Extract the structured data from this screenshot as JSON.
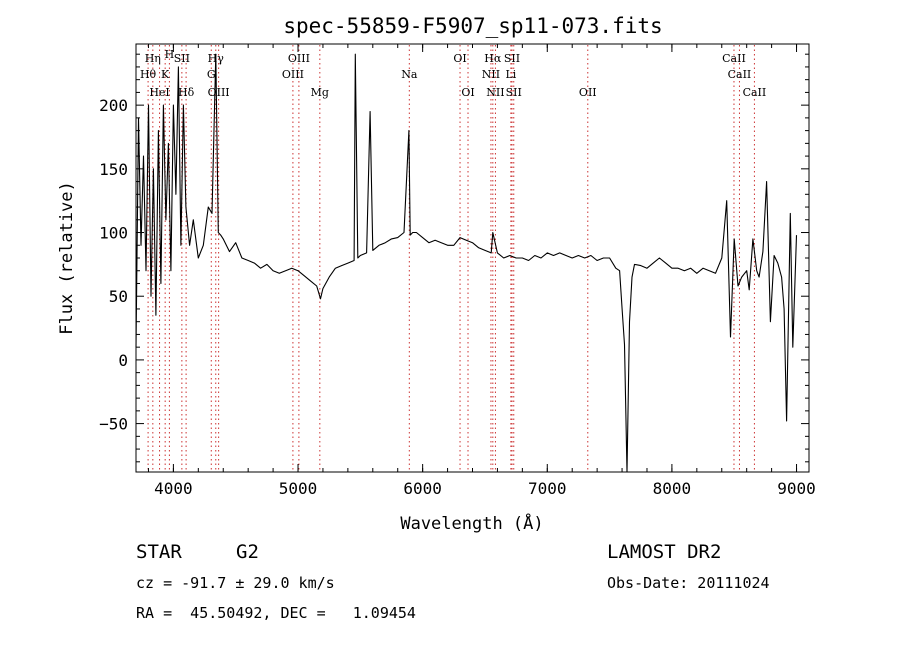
{
  "chart_data": {
    "type": "line",
    "title": "spec-55859-F5907_sp11-073.fits",
    "xlabel": "Wavelength (Å)",
    "ylabel": "Flux (relative)",
    "xlim": [
      3700,
      9100
    ],
    "ylim": [
      -88,
      248
    ],
    "xticks": [
      4000,
      5000,
      6000,
      7000,
      8000,
      9000
    ],
    "yticks": [
      -50,
      0,
      50,
      100,
      150,
      200
    ],
    "grid": false,
    "series": [
      {
        "x": [
          3700,
          3720,
          3740,
          3760,
          3780,
          3800,
          3820,
          3840,
          3860,
          3880,
          3900,
          3920,
          3940,
          3960,
          3980,
          4000,
          4020,
          4040,
          4060,
          4080,
          4100,
          4130,
          4160,
          4200,
          4240,
          4280,
          4310,
          4340,
          4360,
          4380,
          4400,
          4450,
          4500,
          4550,
          4600,
          4650,
          4700,
          4750,
          4800,
          4850,
          4900,
          4950,
          5000,
          5050,
          5100,
          5150,
          5180,
          5200,
          5250,
          5300,
          5350,
          5400,
          5450,
          5460,
          5480,
          5500,
          5550,
          5578,
          5600,
          5650,
          5700,
          5750,
          5800,
          5850,
          5890,
          5900,
          5920,
          5950,
          6000,
          6050,
          6100,
          6150,
          6200,
          6250,
          6300,
          6350,
          6400,
          6450,
          6500,
          6550,
          6563,
          6600,
          6650,
          6700,
          6750,
          6800,
          6850,
          6900,
          6950,
          7000,
          7050,
          7100,
          7150,
          7200,
          7250,
          7300,
          7350,
          7400,
          7450,
          7500,
          7550,
          7580,
          7600,
          7620,
          7640,
          7660,
          7680,
          7700,
          7750,
          7800,
          7850,
          7900,
          7950,
          8000,
          8050,
          8100,
          8150,
          8200,
          8250,
          8300,
          8350,
          8400,
          8440,
          8470,
          8500,
          8530,
          8560,
          8600,
          8620,
          8650,
          8680,
          8700,
          8730,
          8760,
          8790,
          8820,
          8850,
          8880,
          8900,
          8920,
          8950,
          8970,
          9000
        ],
        "values": [
          10,
          190,
          90,
          160,
          70,
          200,
          50,
          150,
          35,
          180,
          60,
          200,
          110,
          170,
          70,
          200,
          130,
          230,
          90,
          200,
          120,
          90,
          110,
          80,
          90,
          120,
          115,
          240,
          100,
          98,
          95,
          85,
          92,
          80,
          78,
          76,
          72,
          75,
          70,
          68,
          70,
          72,
          70,
          66,
          62,
          58,
          48,
          56,
          65,
          72,
          74,
          76,
          78,
          240,
          80,
          82,
          84,
          195,
          86,
          90,
          92,
          95,
          96,
          100,
          180,
          98,
          100,
          100,
          96,
          92,
          94,
          92,
          90,
          90,
          96,
          94,
          92,
          88,
          86,
          84,
          100,
          84,
          80,
          82,
          80,
          80,
          78,
          82,
          80,
          84,
          82,
          84,
          82,
          80,
          82,
          80,
          82,
          78,
          80,
          80,
          72,
          70,
          40,
          12,
          -88,
          30,
          65,
          75,
          74,
          72,
          76,
          80,
          76,
          72,
          72,
          70,
          72,
          68,
          72,
          70,
          68,
          80,
          125,
          18,
          95,
          58,
          65,
          70,
          55,
          95,
          70,
          65,
          85,
          140,
          30,
          82,
          76,
          65,
          40,
          -48,
          115,
          10,
          98
        ]
      }
    ],
    "lines": [
      {
        "name": "Hη",
        "x": 3835,
        "row": 1
      },
      {
        "name": "Hθ",
        "x": 3797,
        "row": 2
      },
      {
        "name": "HeI",
        "x": 3889,
        "row": 3
      },
      {
        "name": "K",
        "x": 3934,
        "row": 2
      },
      {
        "name": "H",
        "x": 3968,
        "row": 0
      },
      {
        "name": "SII",
        "x": 4068,
        "row": 1
      },
      {
        "name": "Hδ",
        "x": 4102,
        "row": 3
      },
      {
        "name": "Hγ",
        "x": 4340,
        "row": 1
      },
      {
        "name": "G",
        "x": 4304,
        "row": 2
      },
      {
        "name": "OIII",
        "x": 4363,
        "row": 3
      },
      {
        "name": "OIII",
        "x": 4959,
        "row": 2
      },
      {
        "name": "OIII",
        "x": 5007,
        "row": 1
      },
      {
        "name": "Mg",
        "x": 5175,
        "row": 3
      },
      {
        "name": "Na",
        "x": 5893,
        "row": 2
      },
      {
        "name": "OI",
        "x": 6300,
        "row": 1
      },
      {
        "name": "OI",
        "x": 6364,
        "row": 3
      },
      {
        "name": "Hα",
        "x": 6563,
        "row": 1
      },
      {
        "name": "NII",
        "x": 6548,
        "row": 2
      },
      {
        "name": "NII",
        "x": 6584,
        "row": 3
      },
      {
        "name": "SII",
        "x": 6717,
        "row": 1
      },
      {
        "name": "Li",
        "x": 6708,
        "row": 2
      },
      {
        "name": "SII",
        "x": 6731,
        "row": 3
      },
      {
        "name": "OII",
        "x": 7325,
        "row": 3
      },
      {
        "name": "CaII",
        "x": 8498,
        "row": 1
      },
      {
        "name": "CaII",
        "x": 8542,
        "row": 2
      },
      {
        "name": "CaII",
        "x": 8662,
        "row": 3
      }
    ],
    "line_color": "#cc3333"
  },
  "info": {
    "class_label": "STAR",
    "subclass": "G2",
    "survey": "LAMOST DR2",
    "redshift": "cz = -91.7 ± 29.0 km/s",
    "obs_date": "Obs-Date: 20111024",
    "coords": "RA =  45.50492, DEC =   1.09454"
  }
}
